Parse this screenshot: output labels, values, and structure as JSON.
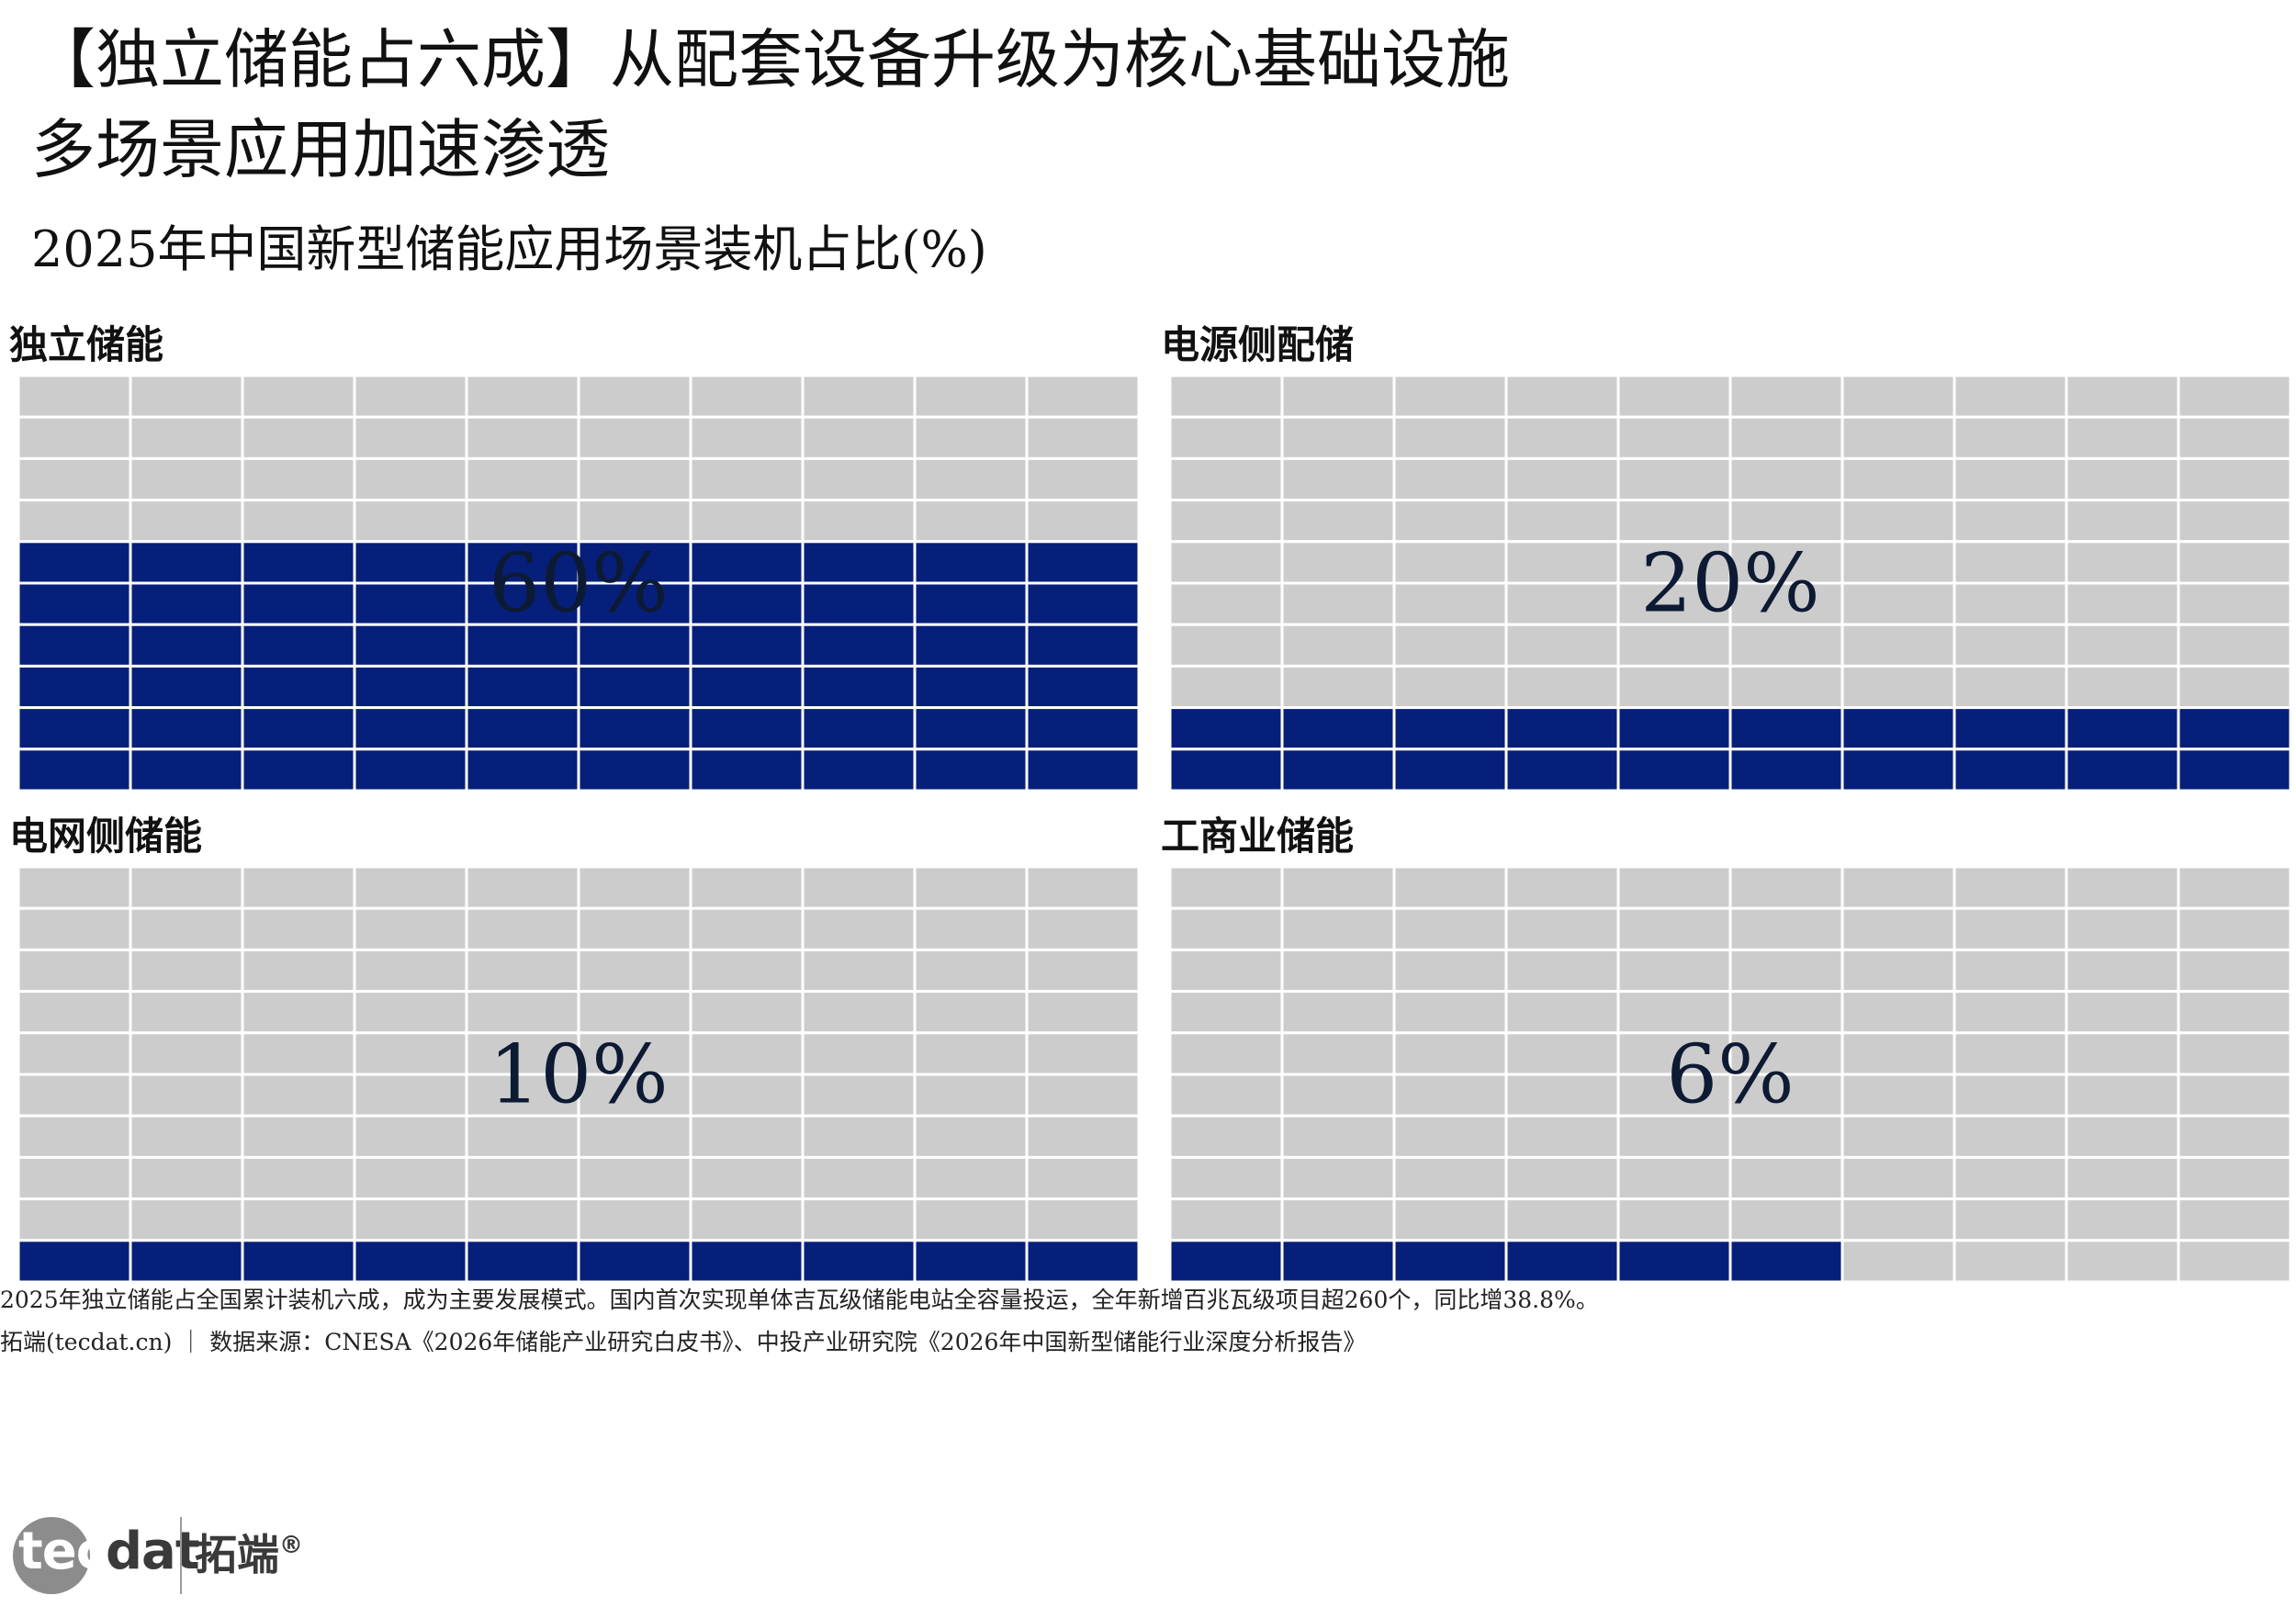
{
  "header": {
    "title_line1": "【独立储能占六成】从配套设备升级为核心基础设施",
    "title_line2": "多场景应用加速渗透",
    "subtitle": "2025年中国新型储能应用场景装机占比(%)"
  },
  "colors": {
    "filled": "#061f7a",
    "empty": "#cccccc",
    "gridline": "#ffffff",
    "label": "#0d1a33"
  },
  "chart_data": {
    "type": "waffle",
    "grid": {
      "rows": 10,
      "cols": 10,
      "fill_from": "bottom"
    },
    "panels": [
      {
        "name": "独立储能",
        "value": 60,
        "label": "60%"
      },
      {
        "name": "电源侧配储",
        "value": 20,
        "label": "20%"
      },
      {
        "name": "电网侧储能",
        "value": 10,
        "label": "10%"
      },
      {
        "name": "工商业储能",
        "value": 6,
        "label": "6%"
      }
    ]
  },
  "footer": {
    "note": "2025年独立储能占全国累计装机六成，成为主要发展模式。国内首次实现单体吉瓦级储能电站全容量投运，全年新增百兆瓦级项目超260个，同比增38.8%。",
    "source": "拓端(tecdat.cn) ｜ 数据来源：CNESA《2026年储能产业研究白皮书》、中投产业研究院《2026年中国新型储能行业深度分析报告》"
  },
  "logo": {
    "word": "tecdat",
    "word_prefix": "tec",
    "word_suffix": "dat",
    "cn": "拓端",
    "reg": "®"
  }
}
